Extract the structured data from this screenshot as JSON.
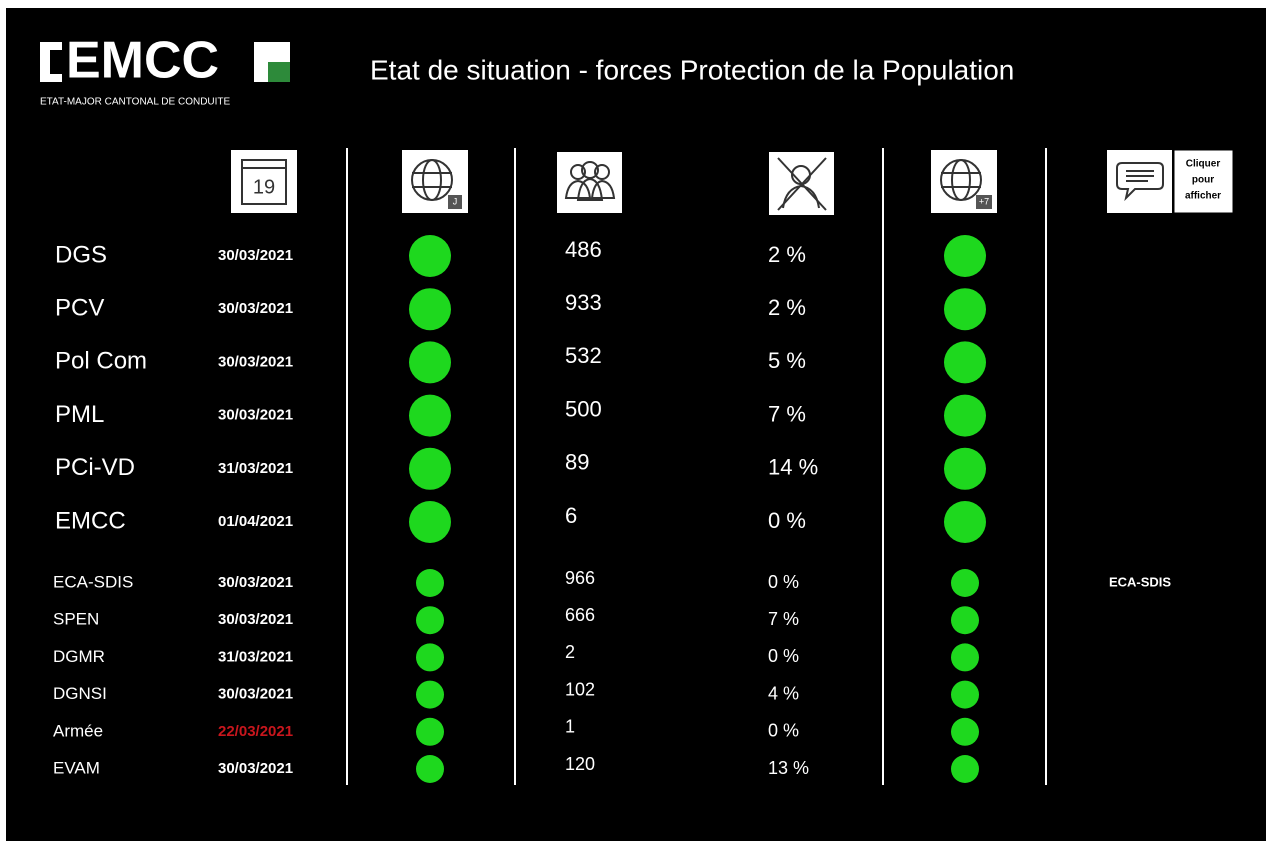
{
  "header": {
    "logo_text": "EMCC",
    "logo_subtitle": "ETAT-MAJOR CANTONAL DE CONDUITE",
    "title": "Etat de situation - forces Protection de la Population"
  },
  "icons": {
    "calendar_day": "19",
    "globe_day_label": "J",
    "globe_week_label": "+7",
    "comment_button": [
      "Cliquer",
      "pour",
      "afficher"
    ]
  },
  "main_rows": [
    {
      "name": "DGS",
      "date": "30/03/2021",
      "count": 486,
      "percent": "2 %"
    },
    {
      "name": "PCV",
      "date": "30/03/2021",
      "count": 933,
      "percent": "2 %"
    },
    {
      "name": "Pol Com",
      "date": "30/03/2021",
      "count": 532,
      "percent": "5 %"
    },
    {
      "name": "PML",
      "date": "30/03/2021",
      "count": 500,
      "percent": "7 %"
    },
    {
      "name": "PCi-VD",
      "date": "31/03/2021",
      "count": 89,
      "percent": "14 %"
    },
    {
      "name": "EMCC",
      "date": "01/04/2021",
      "count": 6,
      "percent": "0 %"
    }
  ],
  "other_rows": [
    {
      "name": "ECA-SDIS",
      "date": "30/03/2021",
      "count": 966,
      "percent": "0 %",
      "comment": "ECA-SDIS"
    },
    {
      "name": "SPEN",
      "date": "30/03/2021",
      "count": 666,
      "percent": "7 %"
    },
    {
      "name": "DGMR",
      "date": "31/03/2021",
      "count": 2,
      "percent": "0 %"
    },
    {
      "name": "DGNSI",
      "date": "30/03/2021",
      "count": 102,
      "percent": "4 %"
    },
    {
      "name": "Armée",
      "date": "22/03/2021",
      "count": 1,
      "percent": "0 %",
      "date_color": "#c8161d"
    },
    {
      "name": "EVAM",
      "date": "30/03/2021",
      "count": 120,
      "percent": "13 %"
    }
  ],
  "status_color": "#1ed81e"
}
